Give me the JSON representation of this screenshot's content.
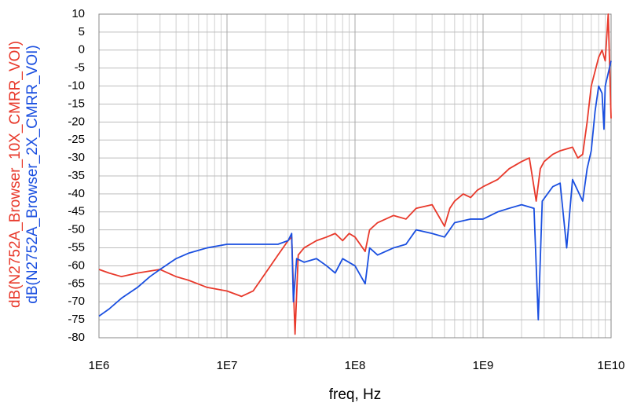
{
  "chart_data": {
    "type": "line",
    "xlabel": "freq, Hz",
    "xscale": "log",
    "grid": true,
    "xlim": [
      1000000,
      10000000000
    ],
    "xticks": [
      {
        "value": 1000000,
        "label": "1E6"
      },
      {
        "value": 10000000,
        "label": "1E7"
      },
      {
        "value": 100000000,
        "label": "1E8"
      },
      {
        "value": 1000000000,
        "label": "1E9"
      },
      {
        "value": 10000000000,
        "label": "1E10"
      }
    ],
    "ylim": [
      -80,
      10
    ],
    "yticks": [
      -80,
      -75,
      -70,
      -65,
      -60,
      -55,
      -50,
      -45,
      -40,
      -35,
      -30,
      -25,
      -20,
      -15,
      -10,
      -5,
      0,
      5,
      10
    ],
    "series": [
      {
        "name": "dB(N2752A_Browser_10X_CMRR_VOI)",
        "color": "#e8392b",
        "x": [
          1000000,
          1200000,
          1500000,
          2000000,
          3000000,
          4000000,
          5000000,
          7000000,
          10000000,
          13000000,
          16000000,
          20000000,
          25000000,
          30000000,
          32000000,
          34000000,
          36000000,
          40000000,
          50000000,
          60000000,
          70000000,
          80000000,
          90000000,
          100000000,
          120000000,
          130000000,
          150000000,
          200000000,
          250000000,
          300000000,
          400000000,
          500000000,
          550000000,
          600000000,
          700000000,
          800000000,
          900000000,
          1000000000,
          1300000000,
          1600000000,
          2000000000,
          2300000000,
          2600000000,
          2800000000,
          3000000000,
          3500000000,
          4000000000,
          5000000000,
          5500000000,
          6000000000,
          6500000000,
          7000000000,
          8000000000,
          8500000000,
          9000000000,
          9500000000,
          10000000000
        ],
        "values": [
          -61,
          -62,
          -63,
          -62,
          -61,
          -63,
          -64,
          -66,
          -67,
          -68.5,
          -67,
          -62,
          -57,
          -53,
          -52,
          -79,
          -57,
          -55,
          -53,
          -52,
          -51,
          -53,
          -51,
          -52,
          -56,
          -50,
          -48,
          -46,
          -47,
          -44,
          -43,
          -49,
          -44,
          -42,
          -40,
          -41,
          -39,
          -38,
          -36,
          -33,
          -31,
          -30,
          -42,
          -33,
          -31,
          -29,
          -28,
          -27,
          -30,
          -29,
          -20,
          -10,
          -2,
          0,
          -3,
          10,
          -19
        ]
      },
      {
        "name": "dB(N2752A_Browser_2X_CMRR_VOI)",
        "color": "#1a4fe0",
        "x": [
          1000000,
          1200000,
          1500000,
          2000000,
          2500000,
          3000000,
          4000000,
          5000000,
          7000000,
          10000000,
          15000000,
          20000000,
          25000000,
          30000000,
          32000000,
          33000000,
          35000000,
          40000000,
          50000000,
          60000000,
          70000000,
          80000000,
          100000000,
          120000000,
          130000000,
          150000000,
          200000000,
          250000000,
          300000000,
          400000000,
          500000000,
          600000000,
          800000000,
          1000000000,
          1300000000,
          1600000000,
          2000000000,
          2500000000,
          2700000000,
          2900000000,
          3500000000,
          4000000000,
          4500000000,
          5000000000,
          6000000000,
          6500000000,
          7000000000,
          7500000000,
          8000000000,
          8500000000,
          8800000000,
          9000000000,
          10000000000
        ],
        "values": [
          -74,
          -72,
          -69,
          -66,
          -63,
          -61,
          -58,
          -56.5,
          -55,
          -54,
          -54,
          -54,
          -54,
          -53,
          -51,
          -70,
          -58,
          -59,
          -58,
          -60,
          -62,
          -58,
          -60,
          -65,
          -55,
          -57,
          -55,
          -54,
          -50,
          -51,
          -52,
          -48,
          -47,
          -47,
          -45,
          -44,
          -43,
          -44,
          -75,
          -42,
          -38,
          -37,
          -55,
          -36,
          -42,
          -33,
          -28,
          -17,
          -10,
          -12,
          -22,
          -10,
          -3
        ]
      }
    ]
  }
}
